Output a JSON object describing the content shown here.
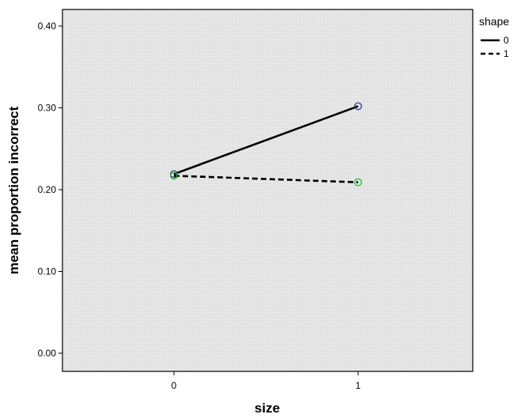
{
  "chart_data": {
    "type": "line",
    "xlabel": "size",
    "ylabel": "mean proportion incorrect",
    "x_categories": [
      "0",
      "1"
    ],
    "ylim": [
      0.0,
      0.4
    ],
    "y_ticks": [
      "0.00",
      "0.10",
      "0.20",
      "0.30",
      "0.40"
    ],
    "grid": false,
    "legend": {
      "title": "shape",
      "placement": "right-top"
    },
    "series": [
      {
        "name": "0",
        "line_style": "solid",
        "marker_color": "#2e3f8f",
        "values": [
          0.219,
          0.302
        ]
      },
      {
        "name": "1",
        "line_style": "dashed",
        "marker_color": "#2fb530",
        "values": [
          0.217,
          0.209
        ]
      }
    ],
    "colors": {
      "plot_background": "#e5e5e5",
      "line": "#000000"
    }
  }
}
